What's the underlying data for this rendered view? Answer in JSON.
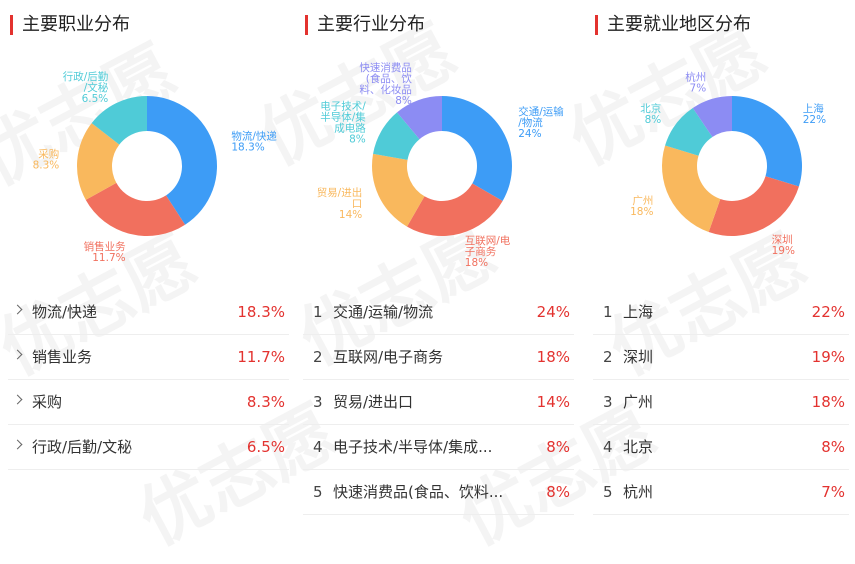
{
  "watermark_text": "优志愿",
  "colors": {
    "accent": "#e3322f"
  },
  "panels": {
    "job": {
      "title": "主要职业分布",
      "list": [
        {
          "name": "物流/快递",
          "pct": "18.3%"
        },
        {
          "name": "销售业务",
          "pct": "11.7%"
        },
        {
          "name": "采购",
          "pct": "8.3%"
        },
        {
          "name": "行政/后勤/文秘",
          "pct": "6.5%"
        }
      ]
    },
    "industry": {
      "title": "主要行业分布",
      "list": [
        {
          "index": "1",
          "name": "交通/运输/物流",
          "pct": "24%"
        },
        {
          "index": "2",
          "name": "互联网/电子商务",
          "pct": "18%"
        },
        {
          "index": "3",
          "name": "贸易/进出口",
          "pct": "14%"
        },
        {
          "index": "4",
          "name": "电子技术/半导体/集成...",
          "pct": "8%"
        },
        {
          "index": "5",
          "name": "快速消费品(食品、饮料...",
          "pct": "8%"
        }
      ]
    },
    "region": {
      "title": "主要就业地区分布",
      "list": [
        {
          "index": "1",
          "name": "上海",
          "pct": "22%"
        },
        {
          "index": "2",
          "name": "深圳",
          "pct": "19%"
        },
        {
          "index": "3",
          "name": "广州",
          "pct": "18%"
        },
        {
          "index": "4",
          "name": "北京",
          "pct": "8%"
        },
        {
          "index": "5",
          "name": "杭州",
          "pct": "7%"
        }
      ]
    }
  },
  "chart_data": [
    {
      "type": "pie",
      "title": "主要职业分布",
      "categories": [
        "物流/快递",
        "销售业务",
        "采购",
        "行政/后勤/文秘"
      ],
      "values": [
        18.3,
        11.7,
        8.3,
        6.5
      ],
      "labels": [
        "物流/快递\n18.3%",
        "销售业务\n11.7%",
        "采购\n8.3%",
        "行政/后勤\n/文秘\n6.5%"
      ],
      "colors": [
        "#3d9cf6",
        "#f1705e",
        "#f9b85d",
        "#4fcbd7"
      ]
    },
    {
      "type": "pie",
      "title": "主要行业分布",
      "categories": [
        "交通/运输/物流",
        "互联网/电子商务",
        "贸易/进出口",
        "电子技术/半导体/集成电路",
        "快速消费品(食品、饮料、化妆品)"
      ],
      "values": [
        24,
        18,
        14,
        8,
        8
      ],
      "labels": [
        "交通/运输\n/物流\n24%",
        "互联网/电\n子商务\n18%",
        "贸易/进出\n口\n14%",
        "电子技术/\n半导体/集\n成电路\n8%",
        "快速消费品\n(食品、饮\n料、化妆品\n8%"
      ],
      "colors": [
        "#3d9cf6",
        "#f1705e",
        "#f9b85d",
        "#4fcbd7",
        "#8c8cf3"
      ]
    },
    {
      "type": "pie",
      "title": "主要就业地区分布",
      "categories": [
        "上海",
        "深圳",
        "广州",
        "北京",
        "杭州"
      ],
      "values": [
        22,
        19,
        18,
        8,
        7
      ],
      "labels": [
        "上海\n22%",
        "深圳\n19%",
        "广州\n18%",
        "北京\n8%",
        "杭州\n7%"
      ],
      "colors": [
        "#3d9cf6",
        "#f1705e",
        "#f9b85d",
        "#4fcbd7",
        "#8c8cf3"
      ]
    }
  ]
}
